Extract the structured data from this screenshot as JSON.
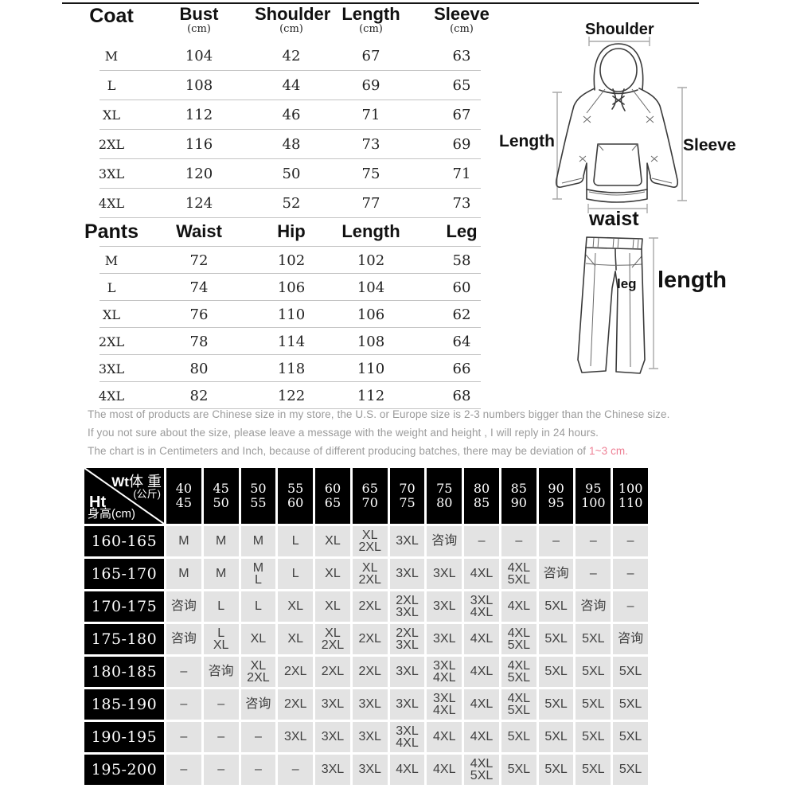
{
  "coat_table": {
    "title": "Coat",
    "unit": "(cm)",
    "columns": [
      "Bust",
      "Shoulder",
      "Length",
      "Sleeve"
    ],
    "rows": [
      {
        "size": "M",
        "values": [
          "104",
          "42",
          "67",
          "63"
        ]
      },
      {
        "size": "L",
        "values": [
          "108",
          "44",
          "69",
          "65"
        ]
      },
      {
        "size": "XL",
        "values": [
          "112",
          "46",
          "71",
          "67"
        ]
      },
      {
        "size": "2XL",
        "values": [
          "116",
          "48",
          "73",
          "69"
        ]
      },
      {
        "size": "3XL",
        "values": [
          "120",
          "50",
          "75",
          "71"
        ]
      },
      {
        "size": "4XL",
        "values": [
          "124",
          "52",
          "77",
          "73"
        ]
      }
    ]
  },
  "pants_table": {
    "title": "Pants",
    "columns": [
      "Waist",
      "Hip",
      "Length",
      "Leg"
    ],
    "rows": [
      {
        "size": "M",
        "values": [
          "72",
          "102",
          "102",
          "58"
        ]
      },
      {
        "size": "L",
        "values": [
          "74",
          "106",
          "104",
          "60"
        ]
      },
      {
        "size": "XL",
        "values": [
          "76",
          "110",
          "106",
          "62"
        ]
      },
      {
        "size": "2XL",
        "values": [
          "78",
          "114",
          "108",
          "64"
        ]
      },
      {
        "size": "3XL",
        "values": [
          "80",
          "118",
          "110",
          "66"
        ]
      },
      {
        "size": "4XL",
        "values": [
          "82",
          "122",
          "112",
          "68"
        ]
      }
    ]
  },
  "diagram": {
    "coat_labels": {
      "shoulder": "Shoulder",
      "length": "Length",
      "sleeve": "Sleeve",
      "waist": "waist"
    },
    "pants_labels": {
      "leg": "leg",
      "length": "length"
    }
  },
  "notes": {
    "line1": "The most of products are Chinese size in my store, the U.S. or Europe size is 2-3 numbers bigger than the Chinese size.",
    "line2": "If you not sure about the size, please leave a message with the weight and height , I will reply in 24 hours.",
    "line3_prefix": "The chart is in Centimeters and Inch, because of different producing batches, there may be deviation of ",
    "line3_highlight": "1~3 cm."
  },
  "size_matrix": {
    "corner": {
      "weight_abbr": "Wt",
      "weight_cn": "体 重",
      "weight_unit": "(公斤)",
      "height_abbr": "Ht",
      "height_cn": "身高(cm)"
    },
    "weight_ranges": [
      "40\n45",
      "45\n50",
      "50\n55",
      "55\n60",
      "60\n65",
      "65\n70",
      "70\n75",
      "75\n80",
      "80\n85",
      "85\n90",
      "90\n95",
      "95\n100",
      "100\n110"
    ],
    "rows": [
      {
        "height": "160-165",
        "cells": [
          "M",
          "M",
          "M",
          "L",
          "XL",
          "XL\n2XL",
          "3XL",
          "咨询",
          "–",
          "–",
          "–",
          "–",
          "–"
        ]
      },
      {
        "height": "165-170",
        "cells": [
          "M",
          "M",
          "M\nL",
          "L",
          "XL",
          "XL\n2XL",
          "3XL",
          "3XL",
          "4XL",
          "4XL\n5XL",
          "咨询",
          "–",
          "–"
        ]
      },
      {
        "height": "170-175",
        "cells": [
          "咨询",
          "L",
          "L",
          "XL",
          "XL",
          "2XL",
          "2XL\n3XL",
          "3XL",
          "3XL\n4XL",
          "4XL",
          "5XL",
          "咨询",
          "–"
        ]
      },
      {
        "height": "175-180",
        "cells": [
          "咨询",
          "L\nXL",
          "XL",
          "XL",
          "XL\n2XL",
          "2XL",
          "2XL\n3XL",
          "3XL",
          "4XL",
          "4XL\n5XL",
          "5XL",
          "5XL",
          "咨询"
        ]
      },
      {
        "height": "180-185",
        "cells": [
          "–",
          "咨询",
          "XL\n2XL",
          "2XL",
          "2XL",
          "2XL",
          "3XL",
          "3XL\n4XL",
          "4XL",
          "4XL\n5XL",
          "5XL",
          "5XL",
          "5XL"
        ]
      },
      {
        "height": "185-190",
        "cells": [
          "–",
          "–",
          "咨询",
          "2XL",
          "3XL",
          "3XL",
          "3XL",
          "3XL\n4XL",
          "4XL",
          "4XL\n5XL",
          "5XL",
          "5XL",
          "5XL"
        ]
      },
      {
        "height": "190-195",
        "cells": [
          "–",
          "–",
          "–",
          "3XL",
          "3XL",
          "3XL",
          "3XL\n4XL",
          "4XL",
          "4XL",
          "5XL",
          "5XL",
          "5XL",
          "5XL"
        ]
      },
      {
        "height": "195-200",
        "cells": [
          "–",
          "–",
          "–",
          "–",
          "3XL",
          "3XL",
          "4XL",
          "4XL",
          "4XL\n5XL",
          "5XL",
          "5XL",
          "5XL",
          "5XL"
        ]
      }
    ]
  },
  "colors": {
    "highlight_pink": "#ee8095",
    "matrix_black": "#000000",
    "matrix_cell_bg": "#e3e3e3",
    "note_gray": "#9b9b9b"
  }
}
